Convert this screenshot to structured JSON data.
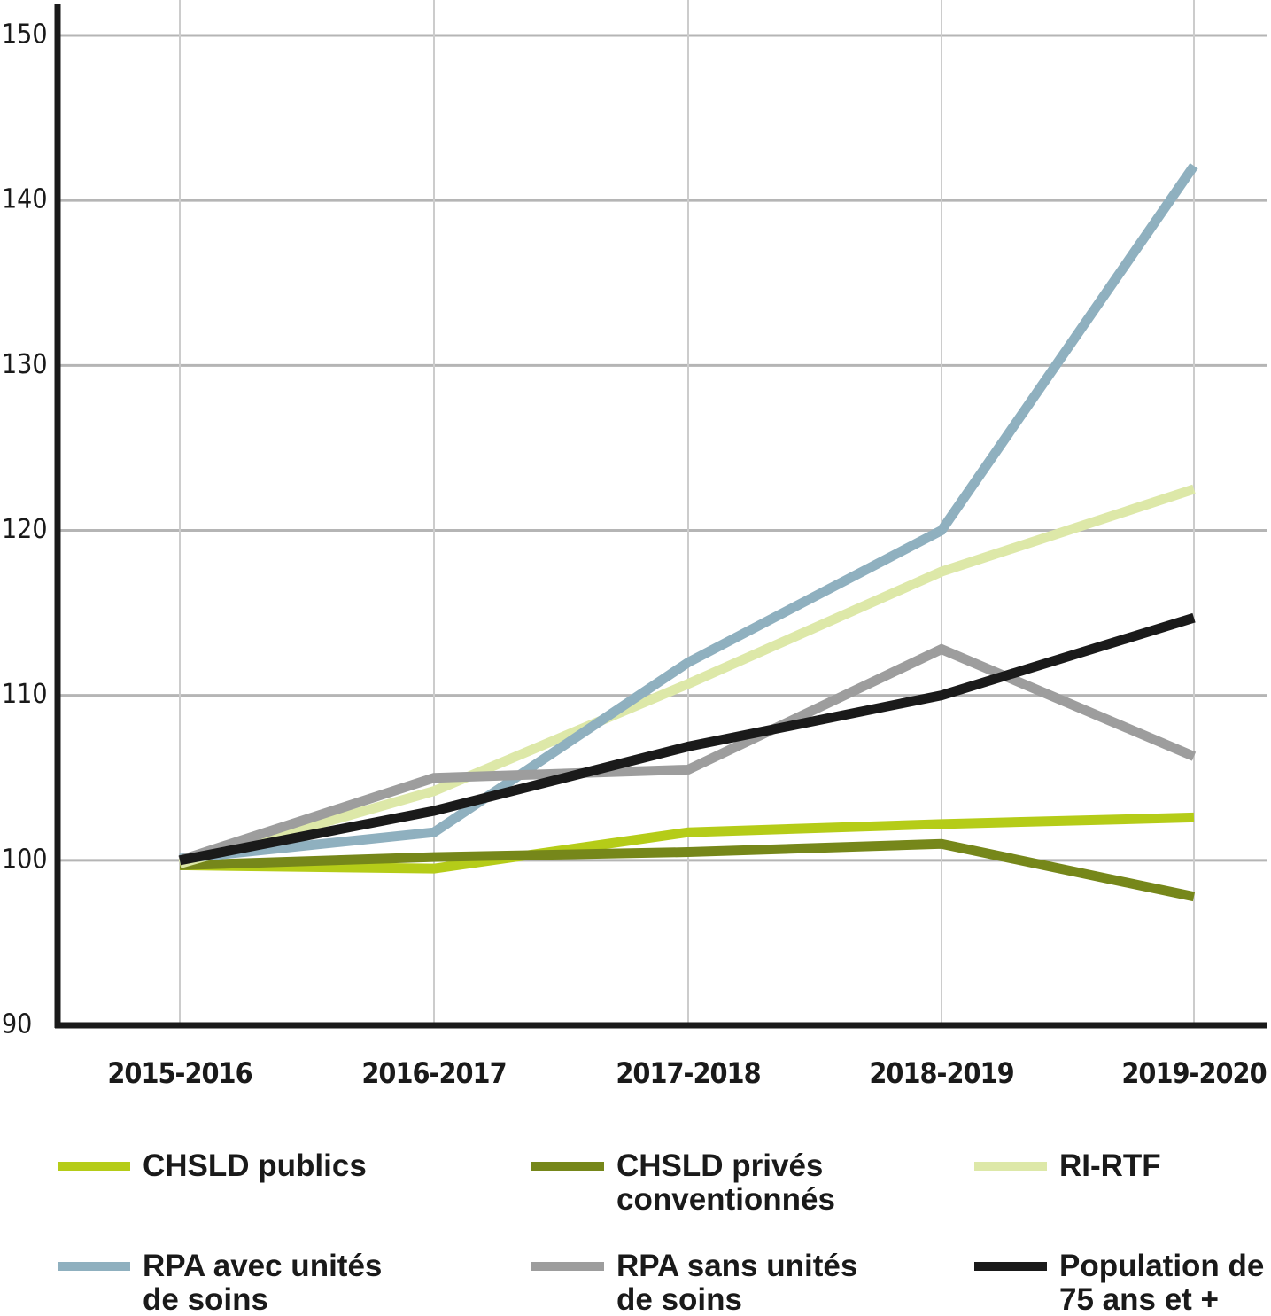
{
  "chart_data": {
    "type": "line",
    "categories": [
      "2015-2016",
      "2016-2017",
      "2017-2018",
      "2018-2019",
      "2019-2020"
    ],
    "ylim": [
      90,
      150
    ],
    "yticks": [
      90,
      100,
      110,
      120,
      130,
      140,
      150
    ],
    "grid": true,
    "series": [
      {
        "name": "CHSLD publics",
        "color": "#b5cc18",
        "values": [
          99.7,
          99.5,
          101.7,
          102.2,
          102.6
        ]
      },
      {
        "name": "CHSLD privés conventionnés",
        "color": "#76871a",
        "values": [
          99.7,
          100.2,
          100.5,
          101.0,
          97.8
        ]
      },
      {
        "name": "RI-RTF",
        "color": "#dde8a8",
        "values": [
          99.8,
          104.2,
          110.7,
          117.5,
          122.5
        ]
      },
      {
        "name": "RPA avec unités de soins",
        "color": "#8fb0bf",
        "values": [
          100.1,
          101.7,
          112.0,
          120.0,
          142.1
        ]
      },
      {
        "name": "RPA sans unités de soins",
        "color": "#9d9d9d",
        "values": [
          100.0,
          105.0,
          105.5,
          112.8,
          106.3
        ]
      },
      {
        "name": "Population de 75 ans et +",
        "color": "#1a1a1a",
        "values": [
          100.0,
          103.0,
          106.9,
          110.0,
          114.7
        ]
      }
    ]
  }
}
